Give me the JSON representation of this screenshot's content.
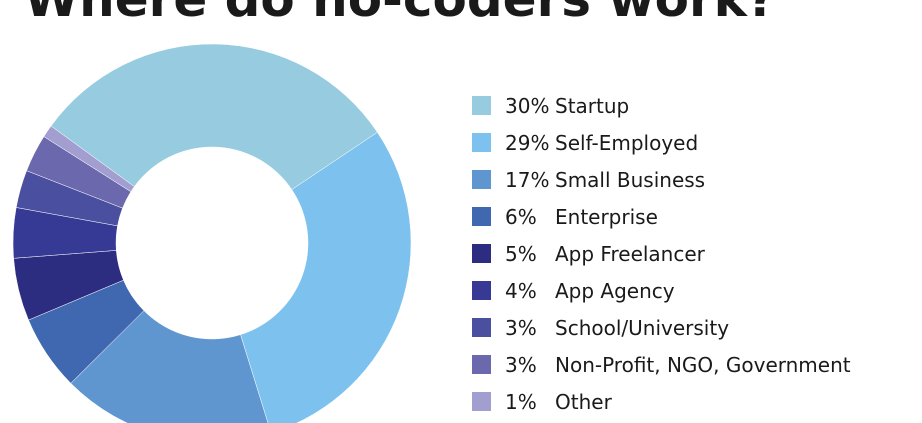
{
  "chart_data": {
    "type": "pie",
    "donut": true,
    "title": "Where do no-coders work?",
    "categories": [
      "Startup",
      "Self-Employed",
      "Small Business",
      "Enterprise",
      "App Freelancer",
      "App Agency",
      "School/University",
      "Non-Profit, NGO, Government",
      "Other"
    ],
    "values": [
      30,
      29,
      17,
      6,
      5,
      4,
      3,
      3,
      1
    ],
    "labels": [
      "30%",
      "29%",
      "17%",
      "6%",
      "5%",
      "4%",
      "3%",
      "3%",
      "1%"
    ],
    "colors": [
      "#96cbe0",
      "#7dc2ee",
      "#5f96d0",
      "#3f68b0",
      "#2c2d80",
      "#363a94",
      "#4a4fa0",
      "#6b68ad",
      "#a29ed0"
    ],
    "legend": "right"
  }
}
